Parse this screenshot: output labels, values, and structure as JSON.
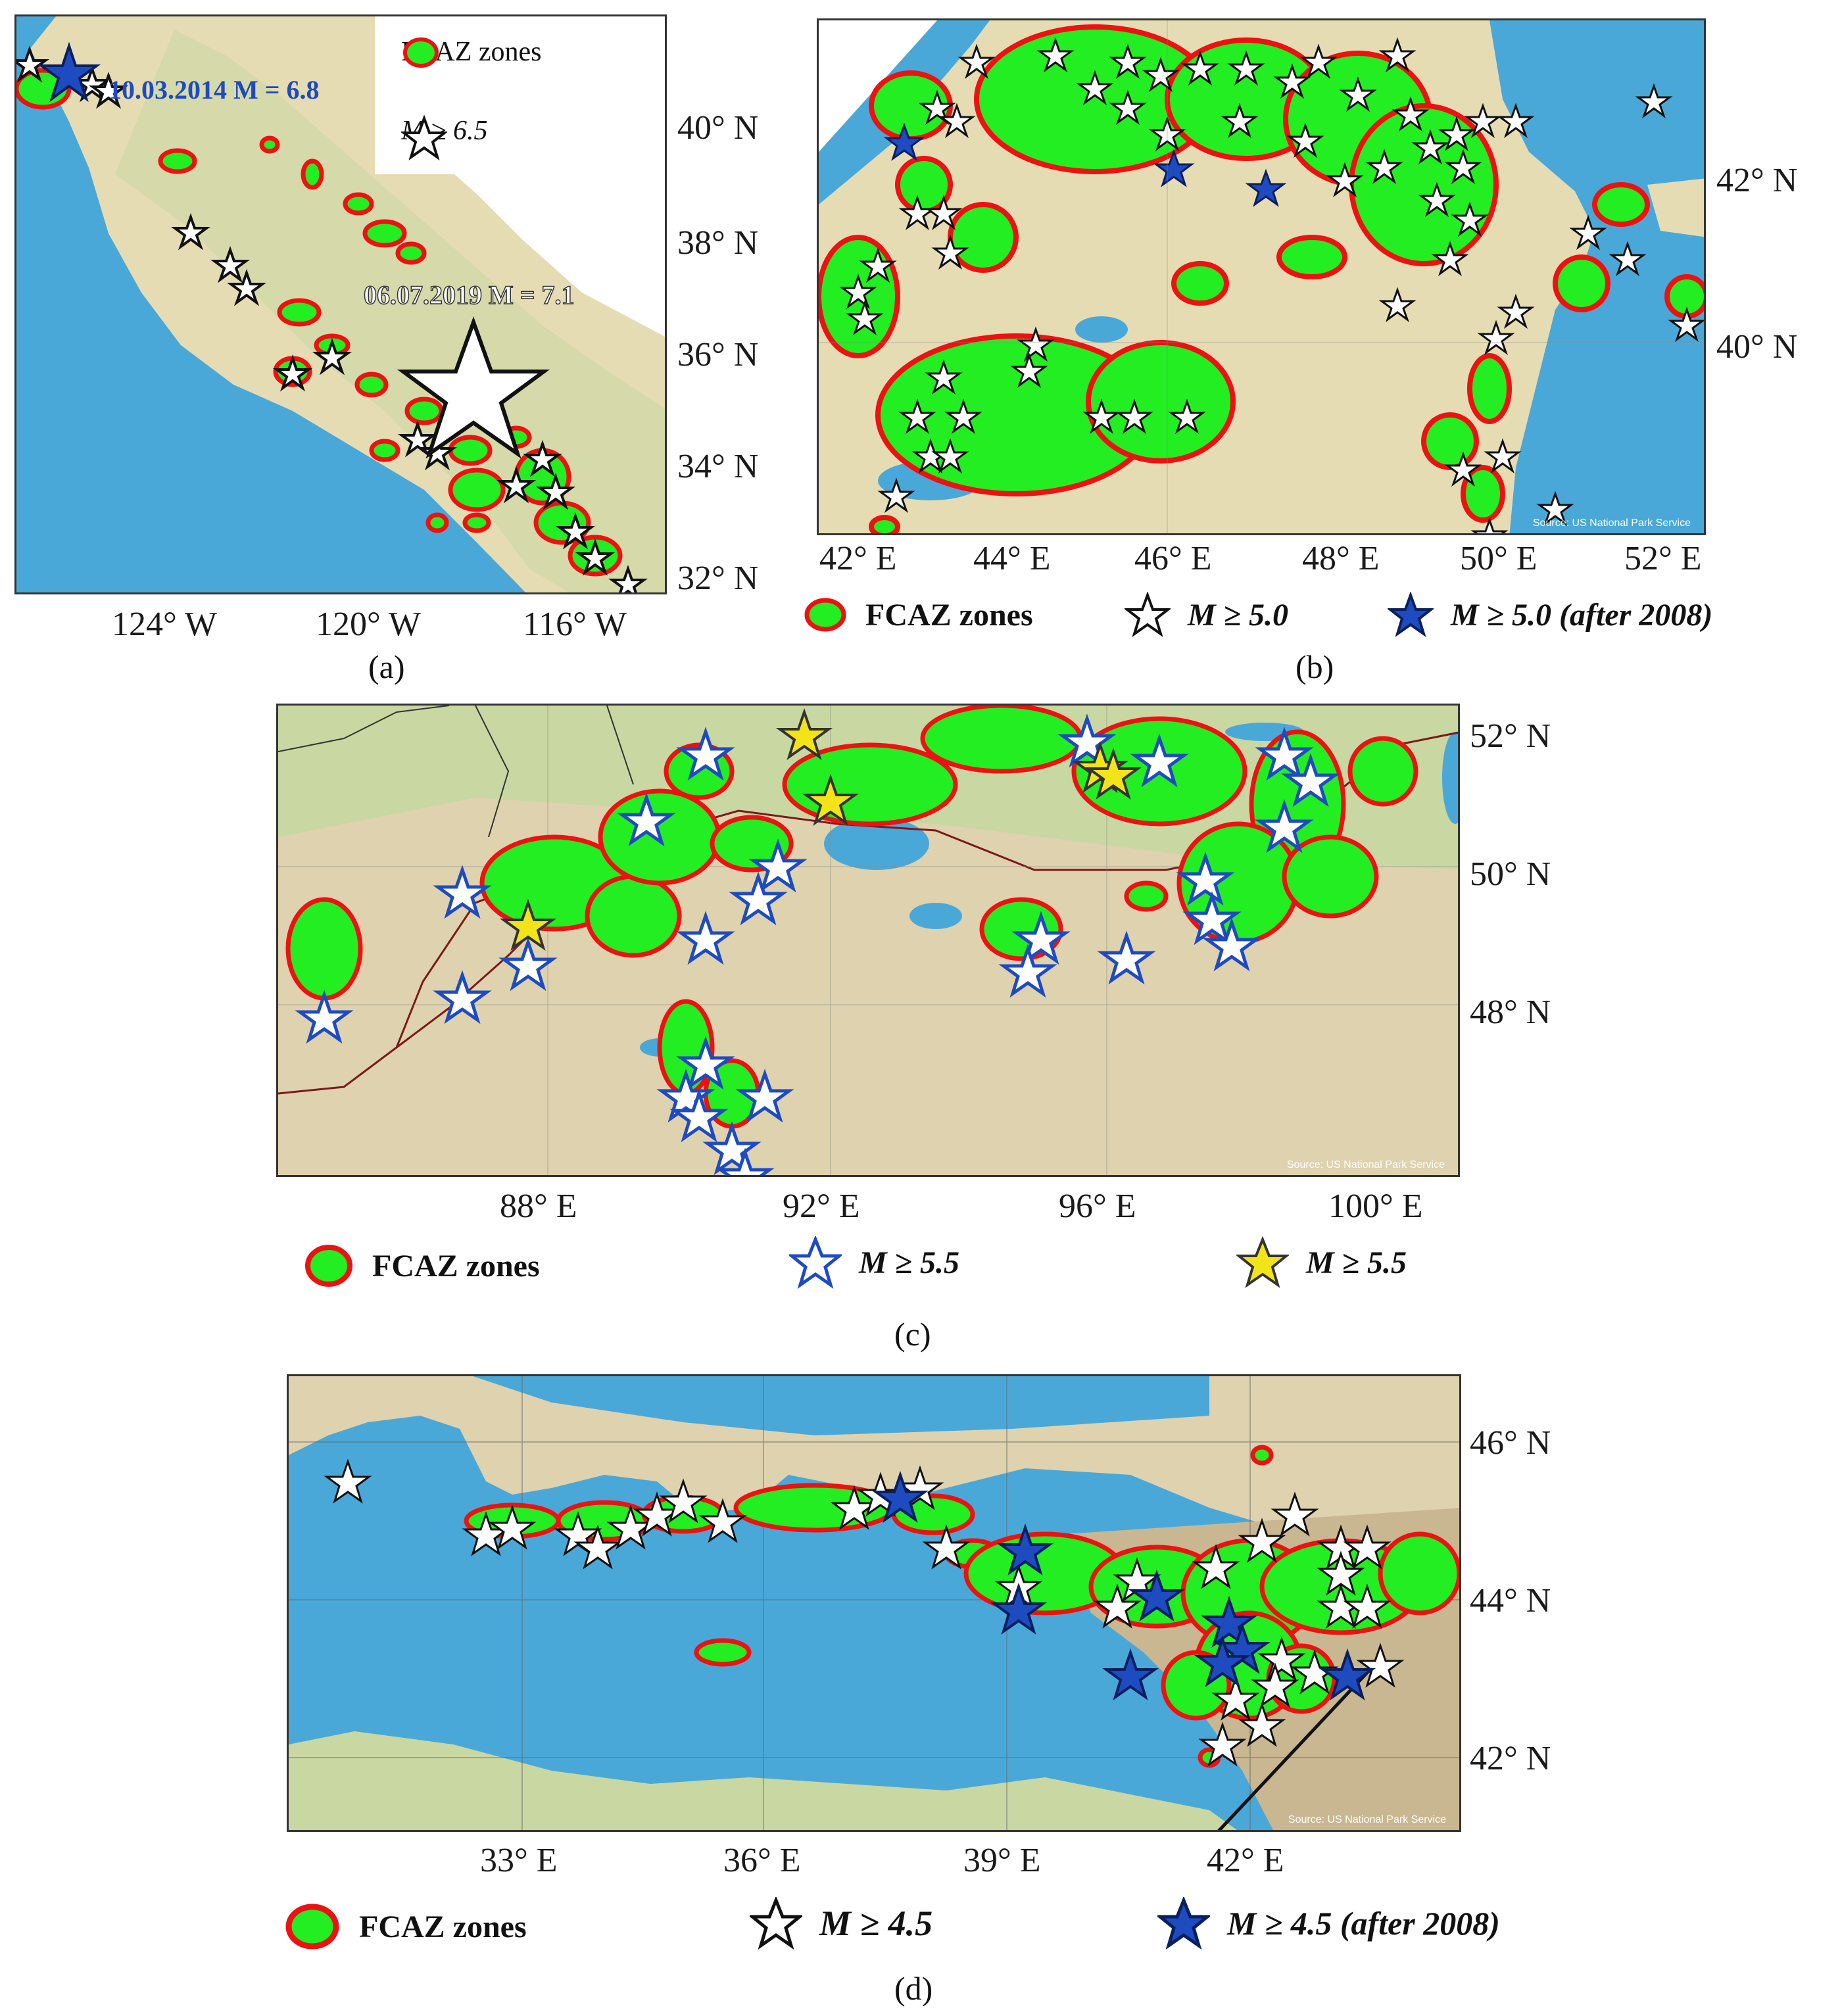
{
  "colors": {
    "sea": "#4aa8d8",
    "land": "#e6dcb4",
    "land_green": "#c9d7a2",
    "zone_fill": "#22ee22",
    "zone_border": "#ee1111",
    "star_black": "#111111",
    "star_blue": "#1e4bbf",
    "star_yellow": "#f3e41a"
  },
  "panel_a": {
    "letter": "(a)",
    "x_ticks": [
      "124° W",
      "120° W",
      "116° W"
    ],
    "y_ticks": [
      "40° N",
      "38° N",
      "36° N",
      "34° N",
      "32° N"
    ],
    "legend": [
      {
        "symbol": "zone",
        "label": "FCAZ zones"
      },
      {
        "symbol": "star-black",
        "label": "M ≥ 6.5"
      }
    ],
    "event_labels": [
      {
        "text": "10.03.2014 M = 6.8",
        "color": "blue"
      },
      {
        "text": "06.07.2019 M = 7.1",
        "color": "white"
      }
    ]
  },
  "panel_b": {
    "letter": "(b)",
    "x_ticks": [
      "42° E",
      "44° E",
      "46° E",
      "48° E",
      "50° E",
      "52° E"
    ],
    "y_ticks": [
      "42° N",
      "40° N"
    ],
    "legend": [
      {
        "symbol": "zone",
        "label": "FCAZ zones"
      },
      {
        "symbol": "star-black",
        "label": "M ≥ 5.0"
      },
      {
        "symbol": "star-blue",
        "label": "M ≥ 5.0 (after 2008)"
      }
    ],
    "credit": "Source: US National Park Service"
  },
  "panel_c": {
    "letter": "(c)",
    "x_ticks": [
      "88° E",
      "92° E",
      "96° E",
      "100° E"
    ],
    "y_ticks": [
      "52° N",
      "50° N",
      "48° N"
    ],
    "legend": [
      {
        "symbol": "zone",
        "label": "FCAZ zones"
      },
      {
        "symbol": "star-blue-outline",
        "label": "M ≥ 5.5"
      },
      {
        "symbol": "star-yellow",
        "label": "M ≥ 5.5"
      }
    ],
    "credit": "Source: US National Park Service"
  },
  "panel_d": {
    "letter": "(d)",
    "x_ticks": [
      "33° E",
      "36° E",
      "39° E",
      "42° E"
    ],
    "y_ticks": [
      "46° N",
      "44° N",
      "42° N"
    ],
    "legend": [
      {
        "symbol": "zone",
        "label": "FCAZ zones"
      },
      {
        "symbol": "star-black",
        "label": "M ≥ 4.5"
      },
      {
        "symbol": "star-blue",
        "label": "M ≥ 4.5 (after 2008)"
      }
    ],
    "credit": "Source: US National Park Service"
  }
}
